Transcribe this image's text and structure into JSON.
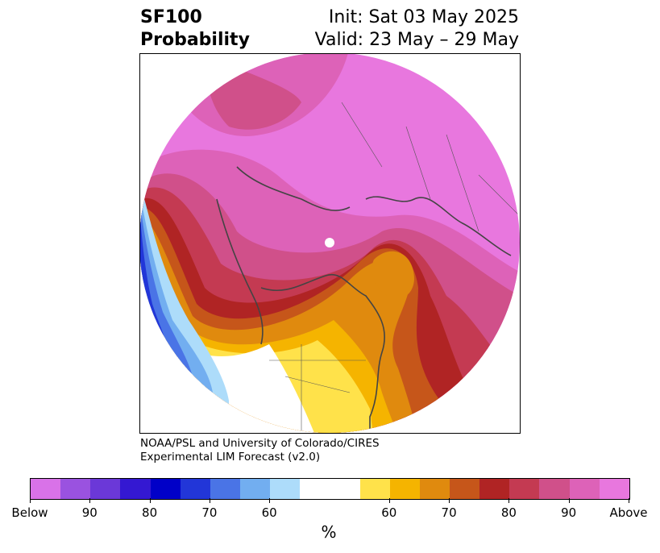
{
  "title": {
    "left_line1": "SF100",
    "left_line2": "Probability",
    "right_line1": "Init: Sat 03 May 2025",
    "right_line2": "Valid: 23 May – 29 May"
  },
  "credit": {
    "line1": "NOAA/PSL and University of Colorado/CIRES",
    "line2": "Experimental LIM Forecast (v2.0)"
  },
  "colorbar": {
    "colors": [
      "#d972e8",
      "#9a52e0",
      "#6b38d8",
      "#3418d2",
      "#0000c8",
      "#2236d8",
      "#4a74e6",
      "#72aef0",
      "#addcfa",
      "#ffffff",
      "#ffffff",
      "#ffe24a",
      "#f5b400",
      "#e08a0e",
      "#c6561a",
      "#b02424",
      "#c43a52",
      "#d0508a",
      "#dd62b8",
      "#e877de"
    ],
    "tick_labels": [
      "Below",
      "90",
      "80",
      "70",
      "60",
      "60",
      "70",
      "80",
      "90",
      "Above"
    ],
    "units": "%"
  },
  "map": {
    "projection": "north-polar-stereographic",
    "field_colors": {
      "above_high": "#e877de",
      "above_90": "#dd62b8",
      "above_80": "#d0508a",
      "above_75": "#c43a52",
      "above_70": "#b02424",
      "above_65": "#c6561a",
      "above_60": "#e08a0e",
      "above_55": "#f5b400",
      "above_50": "#ffe24a",
      "below_55": "#addcfa",
      "below_60": "#72aef0",
      "below_65": "#4a74e6",
      "below_70": "#2236d8"
    }
  }
}
